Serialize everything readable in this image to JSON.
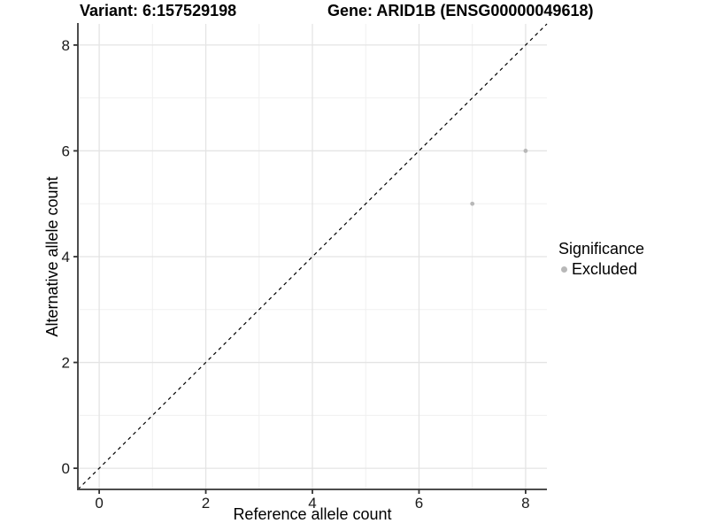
{
  "chart_data": {
    "type": "scatter",
    "title_left": "Variant: 6:157529198",
    "title_right": "Gene: ARID1B (ENSG00000049618)",
    "xlabel": "Reference allele count",
    "ylabel": "Alternative allele count",
    "xlim": [
      -0.4,
      8.4
    ],
    "ylim": [
      -0.4,
      8.4
    ],
    "xticks": [
      0,
      2,
      4,
      6,
      8
    ],
    "yticks": [
      0,
      2,
      4,
      6,
      8
    ],
    "xminor": [
      1,
      3,
      5,
      7
    ],
    "yminor": [
      1,
      3,
      5,
      7
    ],
    "grid": "major and minor, light gray on white",
    "identity_line": {
      "from": [
        -0.4,
        -0.4
      ],
      "to": [
        8.4,
        8.4
      ],
      "style": "dashed",
      "color": "#000000"
    },
    "series": [
      {
        "name": "Excluded",
        "color": "#b8b8b8",
        "points": [
          {
            "x": 7,
            "y": 5
          },
          {
            "x": 8,
            "y": 6
          }
        ]
      }
    ],
    "legend": {
      "title": "Significance",
      "position": "right",
      "items": [
        {
          "label": "Excluded",
          "color": "#b8b8b8"
        }
      ]
    }
  },
  "colors": {
    "background": "#ffffff",
    "grid_major": "#e4e4e4",
    "grid_minor": "#f0f0f0",
    "axis_line": "#4d4d4d",
    "tick_mark": "#333333",
    "tick_label": "#1a1a1a",
    "title_text": "#000000"
  }
}
